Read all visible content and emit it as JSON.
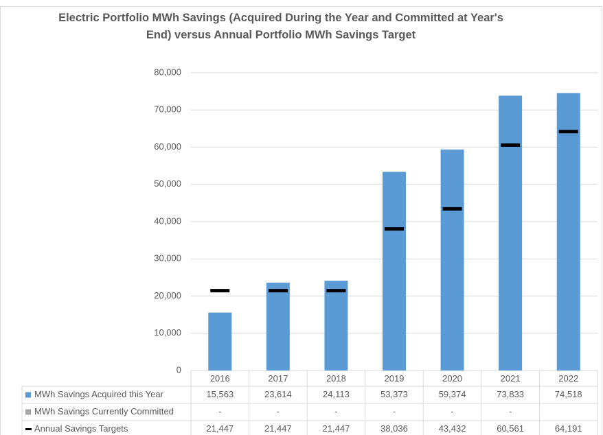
{
  "chart_data": {
    "type": "bar",
    "title": "Electric Portfolio MWh Savings (Acquired During the Year and Committed at Year's End) versus Annual Portfolio MWh Savings Target",
    "categories": [
      "2016",
      "2017",
      "2018",
      "2019",
      "2020",
      "2021",
      "2022"
    ],
    "series": [
      {
        "name": "MWh Savings Acquired this Year",
        "color": "#5b9bd5",
        "mark": "bar",
        "values": [
          15563,
          23614,
          24113,
          53373,
          59374,
          73833,
          74518
        ],
        "value_labels": [
          "15,563",
          "23,614",
          "24,113",
          "53,373",
          "59,374",
          "73,833",
          "74,518"
        ]
      },
      {
        "name": "MWh Savings Currently Committed",
        "color": "#a5a5a5",
        "mark": "bar",
        "values": [
          null,
          null,
          null,
          null,
          null,
          null,
          null
        ],
        "value_labels": [
          "-",
          "-",
          "-",
          "-",
          "-",
          "-",
          null
        ]
      },
      {
        "name": "Annual Savings Targets",
        "color": "#000000",
        "mark": "dash",
        "values": [
          21447,
          21447,
          21447,
          38036,
          43432,
          60561,
          64191
        ],
        "value_labels": [
          "21,447",
          "21,447",
          "21,447",
          "38,036",
          "43,432",
          "60,561",
          "64,191"
        ]
      }
    ],
    "ylim": [
      0,
      80000
    ],
    "yticks": [
      0,
      {
        "value": 10000,
        "label": "10,000"
      },
      {
        "value": 20000,
        "label": "20,000"
      },
      {
        "value": 30000,
        "label": "30,000"
      },
      {
        "value": 40000,
        "label": "40,000"
      },
      {
        "value": 50000,
        "label": "50,000"
      },
      {
        "value": 60000,
        "label": "60,000"
      },
      {
        "value": 70000,
        "label": "70,000"
      },
      {
        "value": 80000,
        "label": "80,000"
      }
    ],
    "grid": true
  }
}
